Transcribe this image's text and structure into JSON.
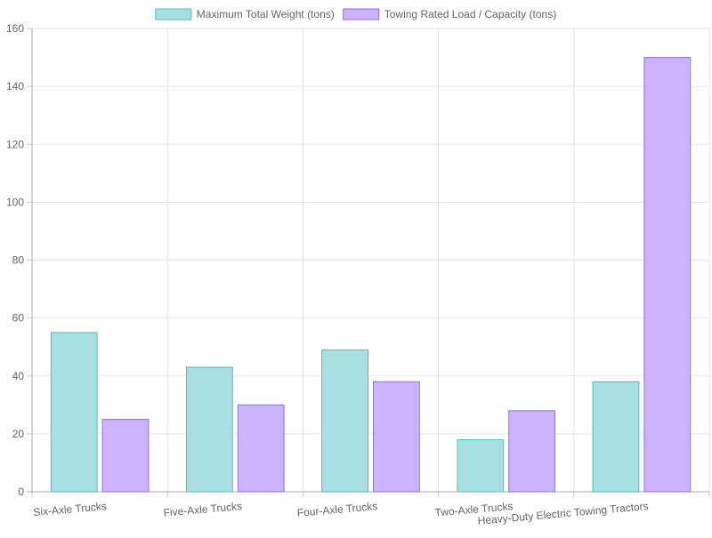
{
  "chart_data": {
    "type": "bar",
    "categories": [
      "Six-Axle Trucks",
      "Five-Axle Trucks",
      "Four-Axle Trucks",
      "Two-Axle Trucks",
      "Heavy-Duty Electric Towing Tractors"
    ],
    "series": [
      {
        "name": "Maximum Total Weight (tons)",
        "values": [
          55,
          43,
          49,
          18,
          38
        ],
        "fill": "#a8e0e0",
        "stroke": "#4bc0c0"
      },
      {
        "name": "Towing Rated Load / Capacity (tons)",
        "values": [
          25,
          30,
          38,
          28,
          150
        ],
        "fill": "#cbb3ff",
        "stroke": "#9966ff"
      }
    ],
    "ylim": [
      0,
      160
    ],
    "yticks": [
      0,
      20,
      40,
      60,
      80,
      100,
      120,
      140,
      160
    ],
    "grid": true,
    "legend_position": "top-center"
  }
}
